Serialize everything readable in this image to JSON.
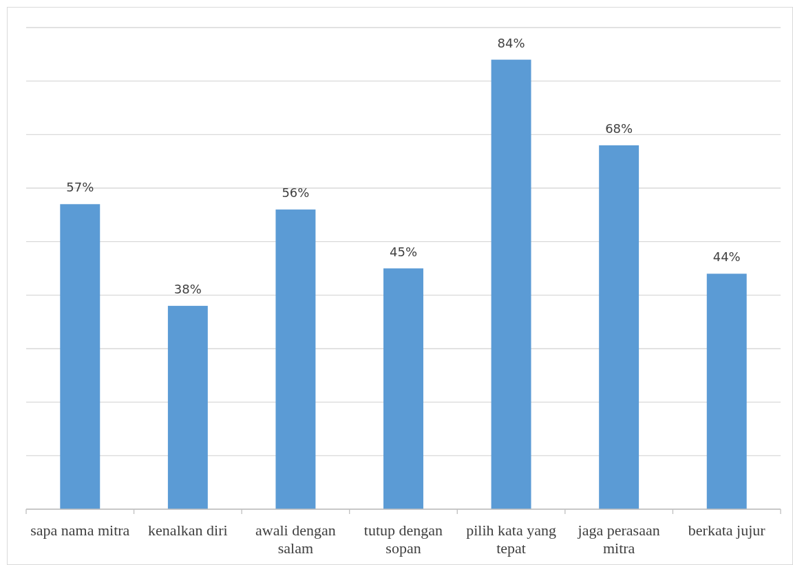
{
  "chart_data": {
    "type": "bar",
    "categories": [
      "sapa nama mitra",
      "kenalkan diri",
      "awali dengan salam",
      "tutup dengan sopan",
      "pilih kata yang tepat",
      "jaga perasaan mitra",
      "berkata jujur"
    ],
    "values": [
      57,
      38,
      56,
      45,
      84,
      68,
      44
    ],
    "value_labels": [
      "57%",
      "38%",
      "56%",
      "45%",
      "84%",
      "68%",
      "44%"
    ],
    "color": "#5b9bd5",
    "ylim": [
      0,
      90
    ],
    "yticks": [
      {
        "value": 0,
        "label": null
      },
      {
        "value": 10,
        "label": null
      },
      {
        "value": 20,
        "label": null
      },
      {
        "value": 30,
        "label": null
      },
      {
        "value": 40,
        "label": null
      },
      {
        "value": 50,
        "label": null
      },
      {
        "value": 60,
        "label": null
      },
      {
        "value": 70,
        "label": null
      },
      {
        "value": 80,
        "label": null
      },
      {
        "value": 90,
        "label": null
      }
    ],
    "grid": "y",
    "tick_labels": "x"
  }
}
